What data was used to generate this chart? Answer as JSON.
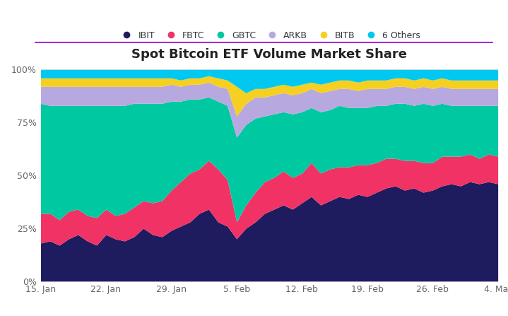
{
  "title": "Spot Bitcoin ETF Volume Market Share",
  "colors": {
    "IBIT": "#1e1b5e",
    "FBTC": "#f03265",
    "GBTC": "#00c8a0",
    "ARKB": "#b8a8e0",
    "BITB": "#f5d020",
    "6 Others": "#00c8f0"
  },
  "legend_order": [
    "IBIT",
    "FBTC",
    "GBTC",
    "ARKB",
    "BITB",
    "6 Others"
  ],
  "x_labels": [
    "15. Jan",
    "22. Jan",
    "29. Jan",
    "5. Feb",
    "12. Feb",
    "19. Feb",
    "26. Feb",
    "4. Mar"
  ],
  "background_color": "#ffffff",
  "accent_line_color": "#9900cc",
  "IBIT": [
    0.18,
    0.19,
    0.17,
    0.2,
    0.22,
    0.19,
    0.17,
    0.22,
    0.2,
    0.19,
    0.21,
    0.25,
    0.22,
    0.21,
    0.24,
    0.26,
    0.28,
    0.32,
    0.34,
    0.28,
    0.26,
    0.2,
    0.25,
    0.28,
    0.32,
    0.34,
    0.36,
    0.34,
    0.37,
    0.4,
    0.36,
    0.38,
    0.4,
    0.39,
    0.41,
    0.4,
    0.42,
    0.44,
    0.45,
    0.43,
    0.44,
    0.42,
    0.43,
    0.45,
    0.46,
    0.45,
    0.47,
    0.46,
    0.47,
    0.46
  ],
  "FBTC": [
    0.14,
    0.13,
    0.12,
    0.13,
    0.12,
    0.12,
    0.13,
    0.12,
    0.11,
    0.13,
    0.14,
    0.13,
    0.15,
    0.17,
    0.19,
    0.21,
    0.23,
    0.21,
    0.23,
    0.25,
    0.22,
    0.08,
    0.11,
    0.14,
    0.15,
    0.15,
    0.16,
    0.15,
    0.14,
    0.16,
    0.15,
    0.15,
    0.14,
    0.15,
    0.14,
    0.15,
    0.14,
    0.14,
    0.13,
    0.14,
    0.13,
    0.14,
    0.13,
    0.14,
    0.13,
    0.14,
    0.13,
    0.12,
    0.13,
    0.13
  ],
  "GBTC": [
    0.52,
    0.51,
    0.54,
    0.5,
    0.49,
    0.52,
    0.53,
    0.49,
    0.52,
    0.51,
    0.49,
    0.46,
    0.47,
    0.46,
    0.42,
    0.38,
    0.35,
    0.33,
    0.3,
    0.32,
    0.35,
    0.4,
    0.38,
    0.35,
    0.31,
    0.3,
    0.28,
    0.3,
    0.29,
    0.26,
    0.29,
    0.28,
    0.29,
    0.28,
    0.27,
    0.27,
    0.27,
    0.25,
    0.26,
    0.27,
    0.26,
    0.28,
    0.27,
    0.25,
    0.24,
    0.24,
    0.23,
    0.25,
    0.23,
    0.24
  ],
  "ARKB": [
    0.08,
    0.09,
    0.09,
    0.09,
    0.09,
    0.09,
    0.09,
    0.09,
    0.09,
    0.09,
    0.08,
    0.08,
    0.08,
    0.08,
    0.08,
    0.07,
    0.07,
    0.07,
    0.07,
    0.07,
    0.08,
    0.1,
    0.1,
    0.1,
    0.09,
    0.09,
    0.09,
    0.09,
    0.09,
    0.09,
    0.09,
    0.09,
    0.08,
    0.09,
    0.08,
    0.09,
    0.08,
    0.08,
    0.08,
    0.08,
    0.08,
    0.08,
    0.08,
    0.08,
    0.08,
    0.08,
    0.08,
    0.08,
    0.08,
    0.08
  ],
  "BITB": [
    0.04,
    0.04,
    0.04,
    0.04,
    0.04,
    0.04,
    0.04,
    0.04,
    0.04,
    0.04,
    0.04,
    0.04,
    0.04,
    0.04,
    0.03,
    0.03,
    0.03,
    0.03,
    0.03,
    0.04,
    0.04,
    0.14,
    0.05,
    0.04,
    0.04,
    0.04,
    0.04,
    0.04,
    0.04,
    0.03,
    0.04,
    0.04,
    0.04,
    0.04,
    0.04,
    0.04,
    0.04,
    0.04,
    0.04,
    0.04,
    0.04,
    0.04,
    0.04,
    0.04,
    0.04,
    0.04,
    0.04,
    0.04,
    0.04,
    0.04
  ],
  "6 Others": [
    0.04,
    0.04,
    0.04,
    0.04,
    0.04,
    0.04,
    0.04,
    0.04,
    0.04,
    0.04,
    0.04,
    0.04,
    0.04,
    0.04,
    0.04,
    0.05,
    0.04,
    0.04,
    0.03,
    0.04,
    0.05,
    0.08,
    0.11,
    0.09,
    0.09,
    0.08,
    0.07,
    0.08,
    0.07,
    0.06,
    0.07,
    0.06,
    0.05,
    0.05,
    0.06,
    0.05,
    0.05,
    0.05,
    0.04,
    0.04,
    0.05,
    0.04,
    0.05,
    0.04,
    0.05,
    0.05,
    0.05,
    0.05,
    0.05,
    0.05
  ]
}
